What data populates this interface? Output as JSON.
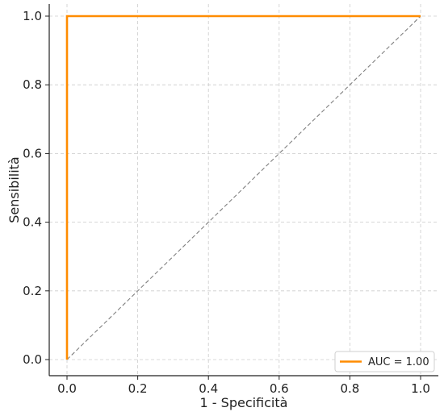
{
  "chart_data": {
    "type": "line",
    "title": "",
    "xlabel": "1 - Specificità",
    "ylabel": "Sensibilità",
    "xlim": [
      0.0,
      1.0
    ],
    "ylim": [
      0.0,
      1.0
    ],
    "grid": true,
    "legend_position": "bottom-right",
    "x_ticks": [
      "0.0",
      "0.2",
      "0.4",
      "0.6",
      "0.8",
      "1.0"
    ],
    "y_ticks": [
      "0.0",
      "0.2",
      "0.4",
      "0.6",
      "0.8",
      "1.0"
    ],
    "series": [
      {
        "name": "AUC = 1.00",
        "color": "#ff8c00",
        "x": [
          0.0,
          0.0,
          1.0
        ],
        "y": [
          0.0,
          1.0,
          1.0
        ]
      }
    ],
    "reference_line": {
      "color": "#808080",
      "style": "dashed",
      "x": [
        0.0,
        1.0
      ],
      "y": [
        0.0,
        1.0
      ]
    }
  }
}
